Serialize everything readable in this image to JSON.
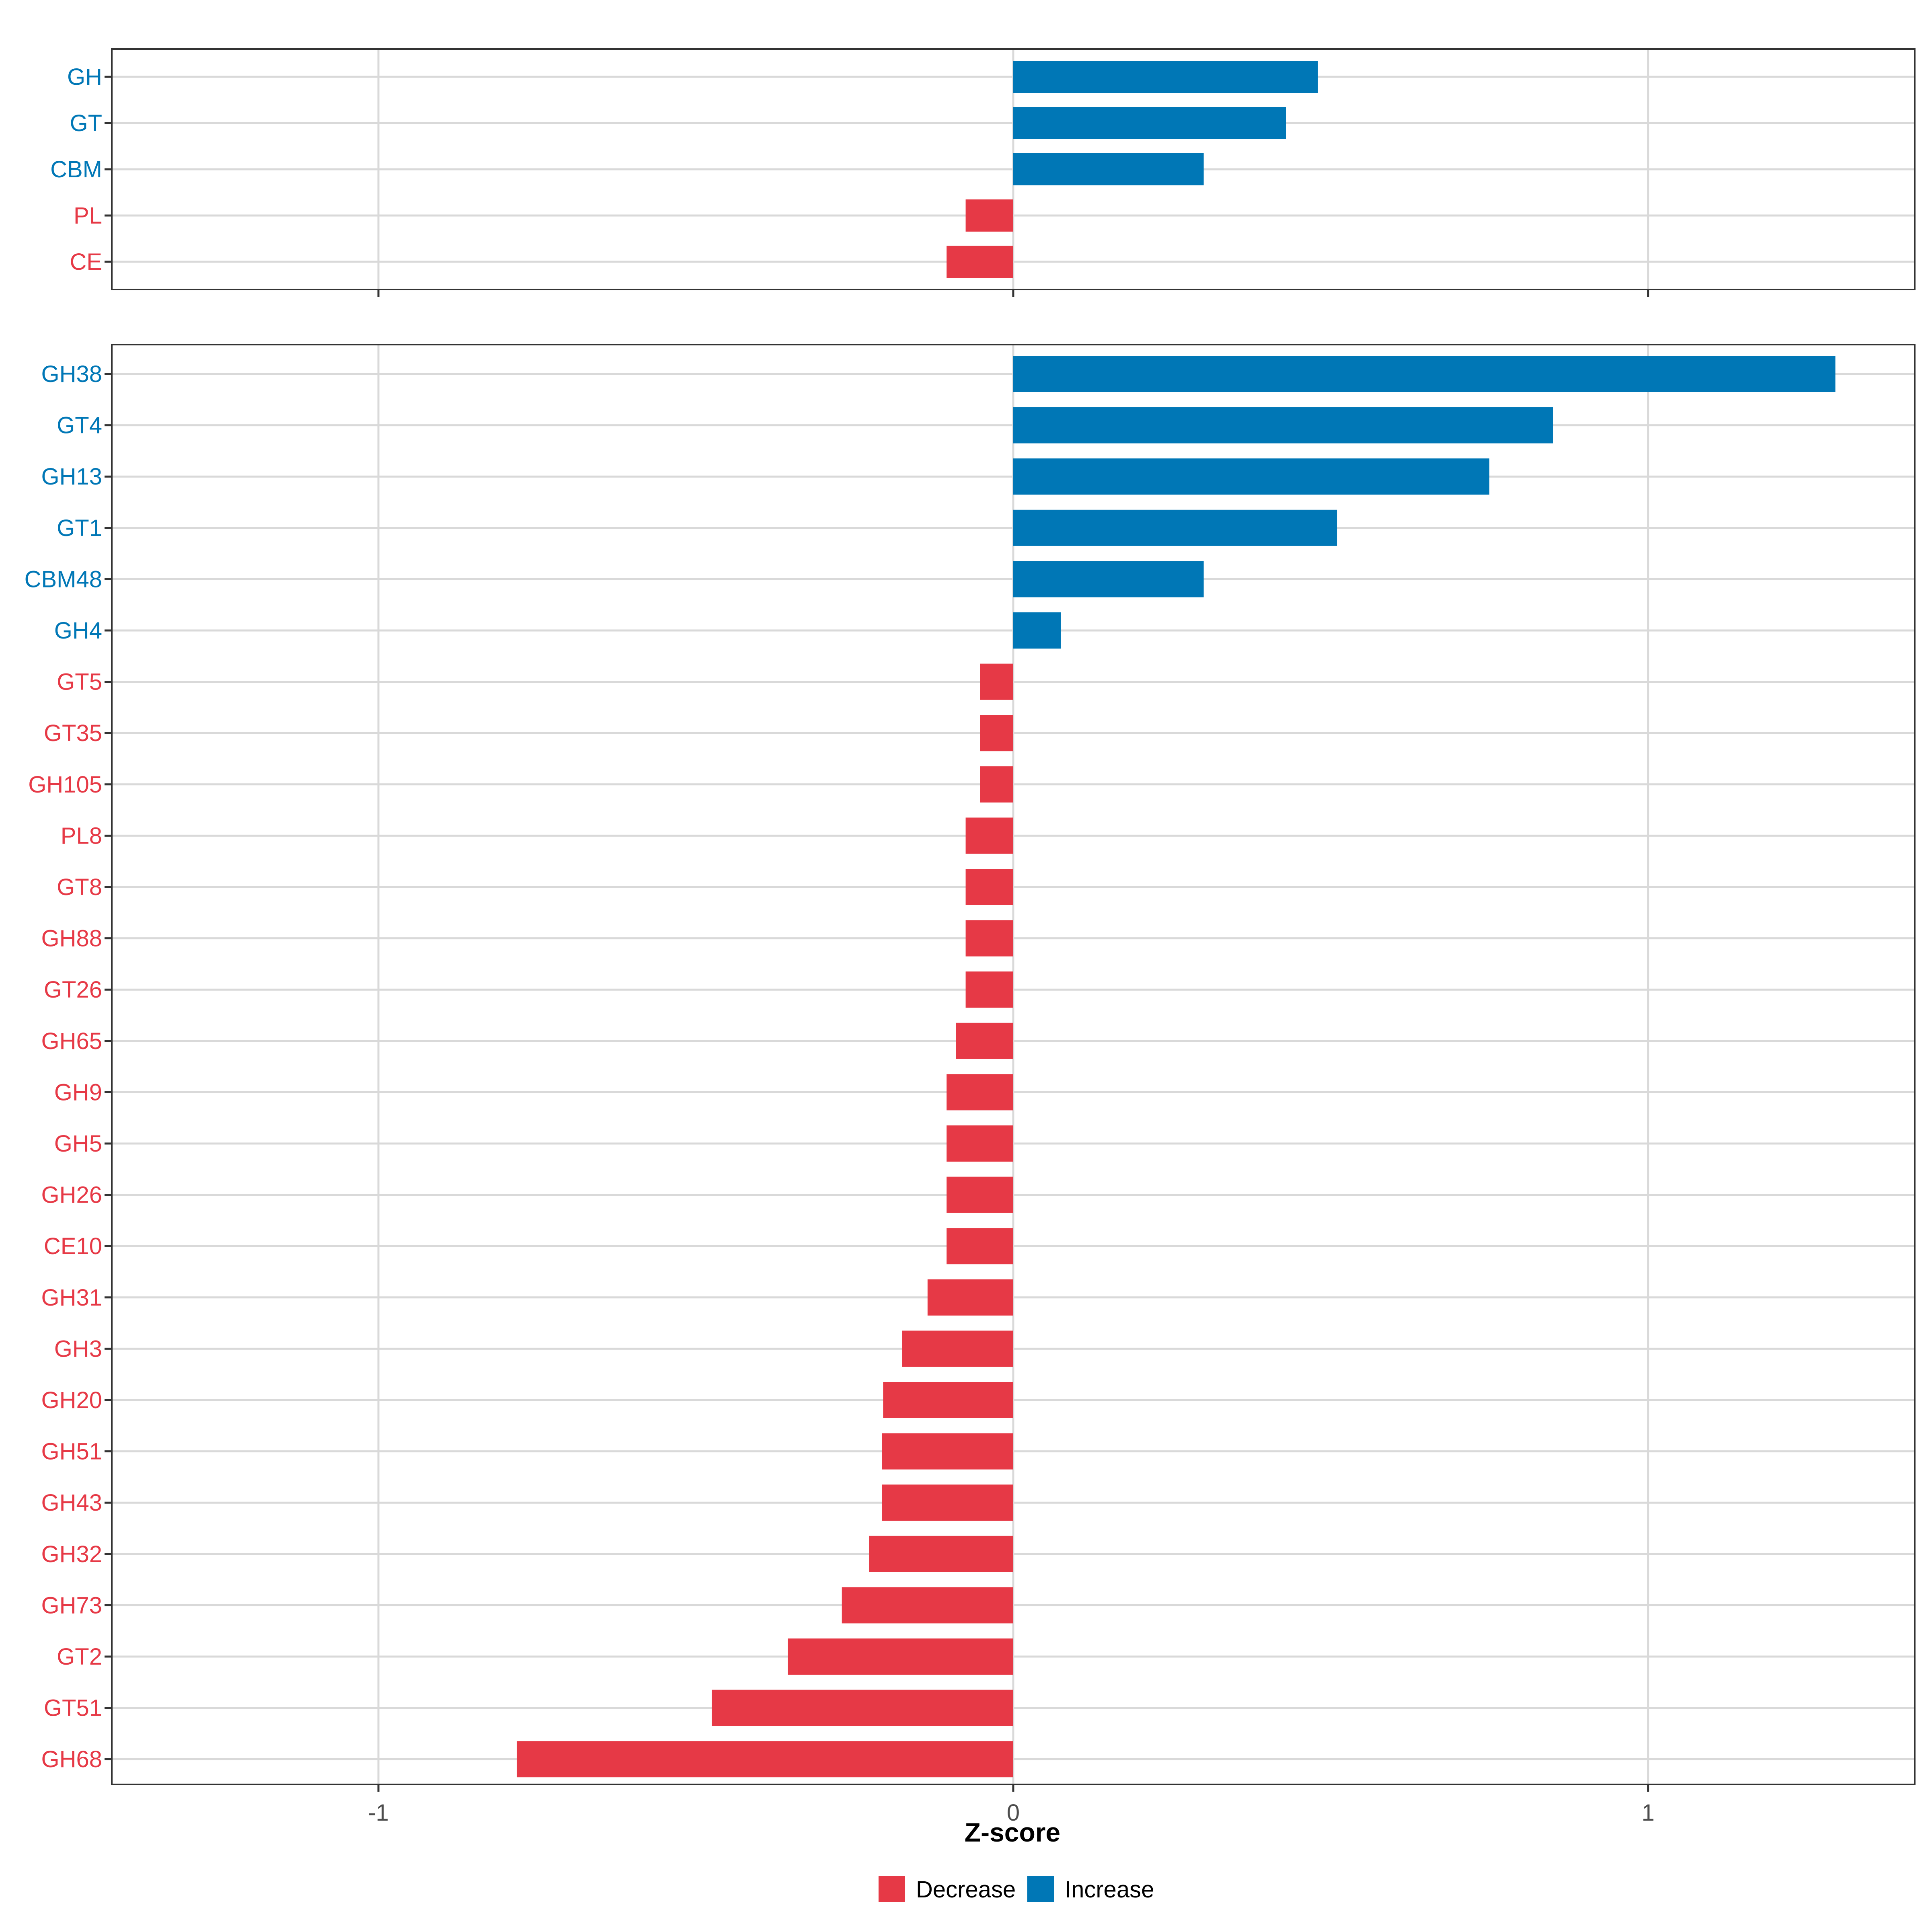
{
  "chart_data": [
    {
      "type": "bar",
      "orientation": "horizontal",
      "panel": "top",
      "categories": [
        "GH",
        "GT",
        "CBM",
        "PL",
        "CE"
      ],
      "values": [
        0.48,
        0.43,
        0.3,
        -0.075,
        -0.105
      ],
      "xlim": [
        -1.42,
        1.42
      ],
      "xticks": [
        -1,
        0,
        1
      ],
      "tick_labels_visible": false,
      "grid": true
    },
    {
      "type": "bar",
      "orientation": "horizontal",
      "panel": "bottom",
      "categories": [
        "GH38",
        "GT4",
        "GH13",
        "GT1",
        "CBM48",
        "GH4",
        "GT5",
        "GT35",
        "GH105",
        "PL8",
        "GT8",
        "GH88",
        "GT26",
        "GH65",
        "GH9",
        "GH5",
        "GH26",
        "CE10",
        "GH31",
        "GH3",
        "GH20",
        "GH51",
        "GH43",
        "GH32",
        "GH73",
        "GT2",
        "GT51",
        "GH68"
      ],
      "values": [
        1.295,
        0.85,
        0.75,
        0.51,
        0.3,
        0.075,
        -0.052,
        -0.052,
        -0.052,
        -0.075,
        -0.075,
        -0.075,
        -0.075,
        -0.09,
        -0.105,
        -0.105,
        -0.105,
        -0.105,
        -0.135,
        -0.175,
        -0.205,
        -0.207,
        -0.207,
        -0.227,
        -0.27,
        -0.355,
        -0.475,
        -0.782
      ],
      "xlim": [
        -1.42,
        1.42
      ],
      "xticks": [
        -1,
        0,
        1
      ],
      "tick_labels": [
        "-1",
        "0",
        "1"
      ],
      "xlabel": "Z-score",
      "grid": true
    }
  ],
  "colors": {
    "increase": "#0077b6",
    "decrease": "#e63946",
    "grid": "#d9d9d9",
    "axis": "#333333",
    "tick_text": "#4d4d4d"
  },
  "legend": {
    "position": "bottom",
    "items": [
      {
        "label": "Decrease",
        "color": "#e63946"
      },
      {
        "label": "Increase",
        "color": "#0077b6"
      }
    ]
  }
}
